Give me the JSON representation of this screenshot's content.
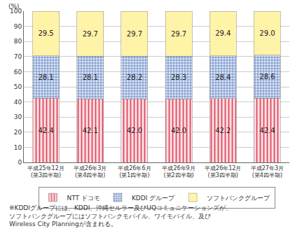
{
  "chart_data": {
    "type": "bar",
    "stacked": true,
    "y_label": "(%)",
    "categories": [
      "平成25年12月\n(第3四半期)",
      "平成26年3月\n(第4四半期)",
      "平成26年6月\n(第1四半期)",
      "平成26年9月\n(第2四半期)",
      "平成26年12月\n(第3四半期)",
      "平成27年3月\n(第4四半期)"
    ],
    "series": [
      {
        "name": "NTT ドコモ",
        "color": "#e0455a",
        "values": [
          42.4,
          42.1,
          42.0,
          42.0,
          42.2,
          42.4
        ],
        "value_labels": [
          "42.4",
          "42.1",
          "42.0",
          "42.0",
          "42.2",
          "42.4"
        ]
      },
      {
        "name": "KDDI グループ",
        "color": "#4a6fb5",
        "values": [
          28.1,
          28.1,
          28.2,
          28.3,
          28.4,
          28.6
        ],
        "value_labels": [
          "28.1",
          "28.1",
          "28.2",
          "28.3",
          "28.4",
          "28.6"
        ]
      },
      {
        "name": "ソフトバンクグループ",
        "color": "#fff3a8",
        "values": [
          29.5,
          29.7,
          29.7,
          29.7,
          29.4,
          29.0
        ],
        "value_labels": [
          "29.5",
          "29.7",
          "29.7",
          "29.7",
          "29.4",
          "29.0"
        ]
      }
    ],
    "ylim": [
      0,
      100
    ],
    "yticks": [
      0,
      10,
      20,
      30,
      40,
      50,
      60,
      70,
      80,
      90,
      100
    ],
    "grid": true,
    "data_labels": true,
    "legend": "bottom",
    "note": "※KDDIグループには、KDDI、沖縄セルラー及びUQコミュニケーションズが、\nソフトバンクグループにはソフトバンクモバイル、ワイモバイル、及び\nWireless City Planningが含まれる。"
  }
}
